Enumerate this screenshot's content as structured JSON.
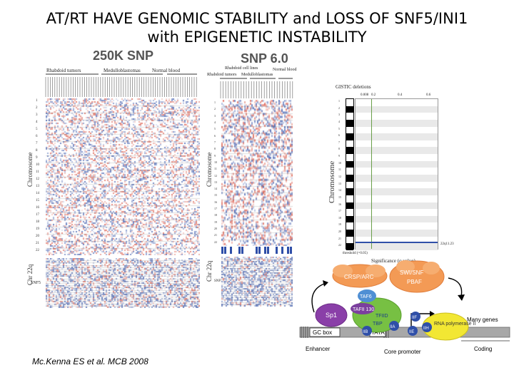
{
  "slide": {
    "title_line1": "AT/RT HAVE GENOMIC STABILITY and LOSS OF SNF5/INI1",
    "title_line2": "with EPIGENETIC INSTABILITY",
    "citation": "Mc.Kenna ES et al. MCB 2008"
  },
  "panel_250k": {
    "heading": "250K SNP",
    "groups": [
      "Rhabdoid tumors",
      "Medulloblastomas",
      "Normal blood"
    ],
    "y_label": "Chromosome",
    "lower_label": "Chr 22q",
    "gene_label": "SNF5"
  },
  "panel_snp6": {
    "heading": "SNP 6.0",
    "group_top": "Rhabdoid cell lines",
    "groups": [
      "Rhabdoid tumors",
      "Medulloblastomas",
      "Normal blood"
    ],
    "y_label": "Chromosome",
    "lower_label": "Chr 22q",
    "gene_label": "SNF5"
  },
  "panel_gistic": {
    "heading": "GISTIC deletions",
    "top_ticks": [
      "0.008",
      "0.2",
      "0.4",
      "0.6"
    ],
    "y_label": "Chromosome",
    "x_label": "Significance (q value)",
    "threshold_label": "threshold (=0.05)",
    "band_label": "22q11.23"
  },
  "chromosomes": [
    "1",
    "2",
    "3",
    "4",
    "5",
    "6",
    "7",
    "8",
    "9",
    "10",
    "11",
    "12",
    "13",
    "14",
    "15",
    "16",
    "17",
    "18",
    "19",
    "20",
    "21",
    "22"
  ],
  "diagram": {
    "complexes": [
      "CRSP/ARC",
      "SWI/SNF",
      "PBAF",
      "TAF6",
      "TAFII 130",
      "TFIID",
      "TBP",
      "Sp1",
      "TFIIB",
      "TFIIA",
      "TFIIE",
      "TFIIF",
      "TFIIH",
      "RNA polymerase II"
    ],
    "dna_labels": [
      "GC box",
      "TATA"
    ],
    "region_labels": [
      "Enhancer",
      "Core promoter",
      "Coding"
    ],
    "side_label": "Many genes",
    "short_labels": [
      "IIB",
      "IIA",
      "IIE",
      "IIF",
      "IIH"
    ]
  },
  "colors": {
    "gain": "#d9503f",
    "loss": "#2f4fa8",
    "dna": "#9a9a9a"
  }
}
